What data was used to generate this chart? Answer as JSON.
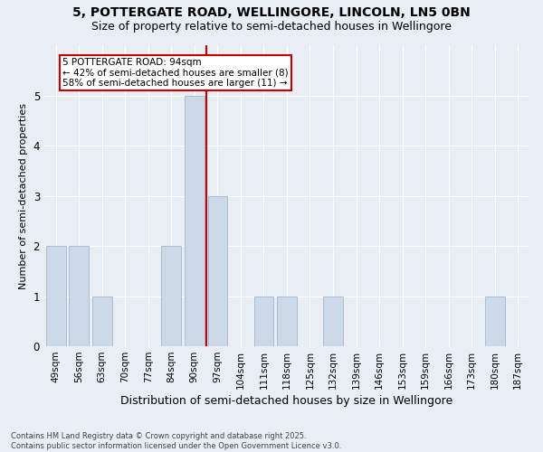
{
  "title1": "5, POTTERGATE ROAD, WELLINGORE, LINCOLN, LN5 0BN",
  "title2": "Size of property relative to semi-detached houses in Wellingore",
  "xlabel": "Distribution of semi-detached houses by size in Wellingore",
  "ylabel": "Number of semi-detached properties",
  "categories": [
    "49sqm",
    "56sqm",
    "63sqm",
    "70sqm",
    "77sqm",
    "84sqm",
    "90sqm",
    "97sqm",
    "104sqm",
    "111sqm",
    "118sqm",
    "125sqm",
    "132sqm",
    "139sqm",
    "146sqm",
    "153sqm",
    "159sqm",
    "166sqm",
    "173sqm",
    "180sqm",
    "187sqm"
  ],
  "values": [
    2,
    2,
    1,
    0,
    0,
    2,
    5,
    3,
    0,
    1,
    1,
    0,
    1,
    0,
    0,
    0,
    0,
    0,
    0,
    1,
    0
  ],
  "bar_color": "#ccd9e8",
  "bar_edge_color": "#aabdd4",
  "property_label": "5 POTTERGATE ROAD: 94sqm",
  "annotation_line1": "← 42% of semi-detached houses are smaller (8)",
  "annotation_line2": "58% of semi-detached houses are larger (11) →",
  "red_line_color": "#cc0000",
  "annotation_box_color": "#ffffff",
  "annotation_box_edge": "#cc0000",
  "ylim": [
    0,
    6
  ],
  "yticks": [
    0,
    1,
    2,
    3,
    4,
    5
  ],
  "bg_color": "#e8eef4",
  "plot_bg_color": "#e8eef4",
  "grid_color": "#ffffff",
  "footnote": "Contains HM Land Registry data © Crown copyright and database right 2025.\nContains public sector information licensed under the Open Government Licence v3.0.",
  "title1_fontsize": 10,
  "title2_fontsize": 9,
  "ylabel_fontsize": 8,
  "xlabel_fontsize": 9,
  "tick_fontsize": 7.5,
  "annot_fontsize": 7.5,
  "footnote_fontsize": 6
}
